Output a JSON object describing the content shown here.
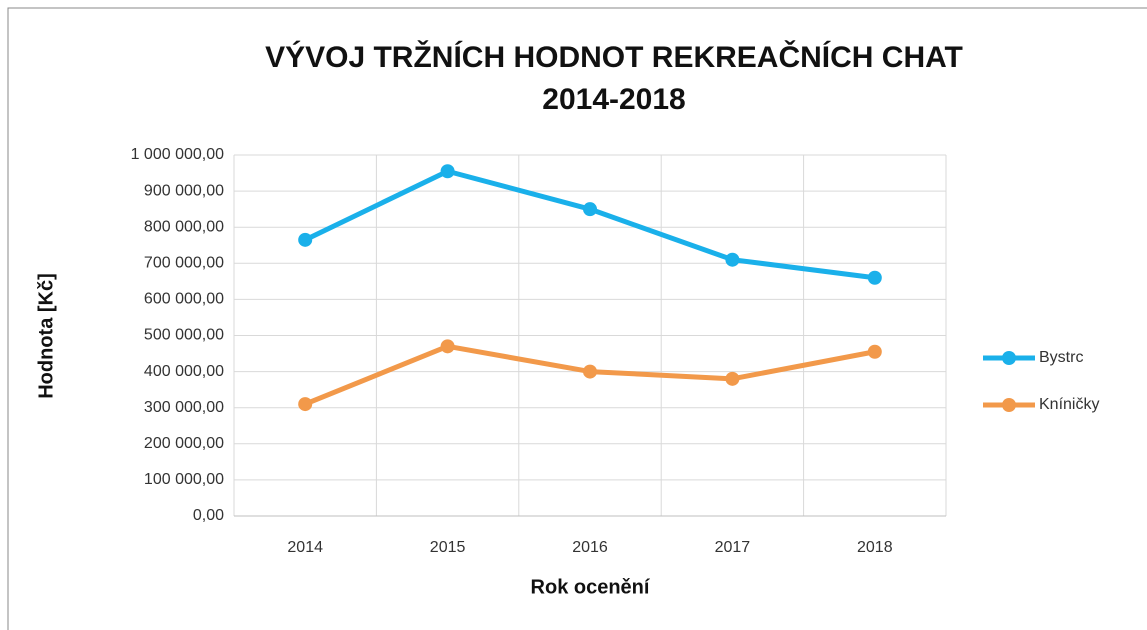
{
  "chart_data": {
    "type": "line",
    "title": [
      "VÝVOJ TRŽNÍCH HODNOT REKREAČNÍCH CHAT",
      "2014-2018"
    ],
    "x_label": "Rok ocenění",
    "y_label": "Hodnota  [Kč]",
    "categories": [
      "2014",
      "2015",
      "2016",
      "2017",
      "2018"
    ],
    "series": [
      {
        "name": "Bystrc",
        "color": "#1ab0ea",
        "values": [
          765000,
          955000,
          850000,
          710000,
          660000
        ]
      },
      {
        "name": "Kníničky",
        "color": "#f2994a",
        "values": [
          310000,
          470000,
          400000,
          380000,
          455000
        ]
      }
    ],
    "ylim": [
      0,
      1000000
    ],
    "yticks": [
      {
        "value": 0,
        "label": "0,00"
      },
      {
        "value": 100000,
        "label": "100 000,00"
      },
      {
        "value": 200000,
        "label": "200 000,00"
      },
      {
        "value": 300000,
        "label": "300 000,00"
      },
      {
        "value": 400000,
        "label": "400 000,00"
      },
      {
        "value": 500000,
        "label": "500 000,00"
      },
      {
        "value": 600000,
        "label": "600 000,00"
      },
      {
        "value": 700000,
        "label": "700 000,00"
      },
      {
        "value": 800000,
        "label": "800 000,00"
      },
      {
        "value": 900000,
        "label": "900 000,00"
      },
      {
        "value": 1000000,
        "label": "1 000 000,00"
      }
    ],
    "grid": true,
    "legend": "right"
  }
}
